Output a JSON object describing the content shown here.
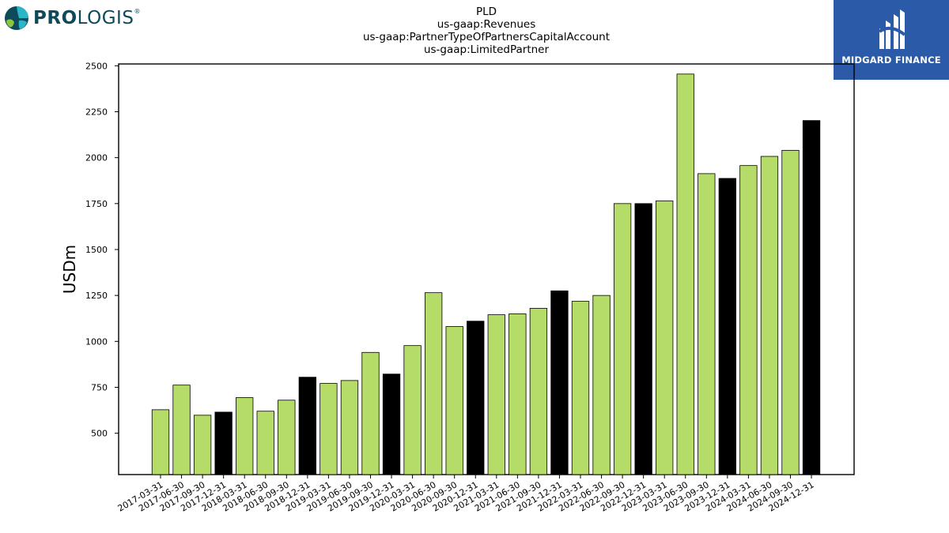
{
  "branding": {
    "left_logo_text_bold": "PRO",
    "left_logo_text_light": "LOGIS",
    "left_logo_mark": "®",
    "right_logo_text": "MIDGARD FINANCE",
    "right_logo_bg": "#2a5aa8"
  },
  "chart_data": {
    "type": "bar",
    "title_lines": [
      "PLD",
      "us-gaap:Revenues",
      "us-gaap:PartnerTypeOfPartnersCapitalAccount",
      "us-gaap:LimitedPartner"
    ],
    "ylabel": "USDm",
    "xlabel": "",
    "ylim": [
      275,
      2510
    ],
    "yticks": [
      500,
      750,
      1000,
      1250,
      1500,
      1750,
      2000,
      2250,
      2500
    ],
    "grid": false,
    "colors": {
      "quarter": "#b5dc68",
      "year_end": "#000000"
    },
    "categories": [
      "2017-03-31",
      "2017-06-30",
      "2017-09-30",
      "2017-12-31",
      "2018-03-31",
      "2018-06-30",
      "2018-09-30",
      "2018-12-31",
      "2019-03-31",
      "2019-06-30",
      "2019-09-30",
      "2019-12-31",
      "2020-03-31",
      "2020-06-30",
      "2020-09-30",
      "2020-12-31",
      "2021-03-31",
      "2021-06-30",
      "2021-09-30",
      "2021-12-31",
      "2022-03-31",
      "2022-06-30",
      "2022-09-30",
      "2022-12-31",
      "2023-03-31",
      "2023-06-30",
      "2023-09-30",
      "2023-12-31",
      "2024-03-31",
      "2024-06-30",
      "2024-09-30",
      "2024-12-31"
    ],
    "values": [
      628,
      762,
      598,
      615,
      694,
      620,
      680,
      805,
      771,
      787,
      940,
      822,
      977,
      1265,
      1081,
      1110,
      1145,
      1150,
      1180,
      1275,
      1218,
      1250,
      1750,
      1750,
      1765,
      2455,
      1913,
      1887,
      1957,
      2007,
      2040,
      2202
    ],
    "year_end": [
      false,
      false,
      false,
      true,
      false,
      false,
      false,
      true,
      false,
      false,
      false,
      true,
      false,
      false,
      false,
      true,
      false,
      false,
      false,
      true,
      false,
      false,
      false,
      true,
      false,
      false,
      false,
      true,
      false,
      false,
      false,
      true
    ]
  }
}
